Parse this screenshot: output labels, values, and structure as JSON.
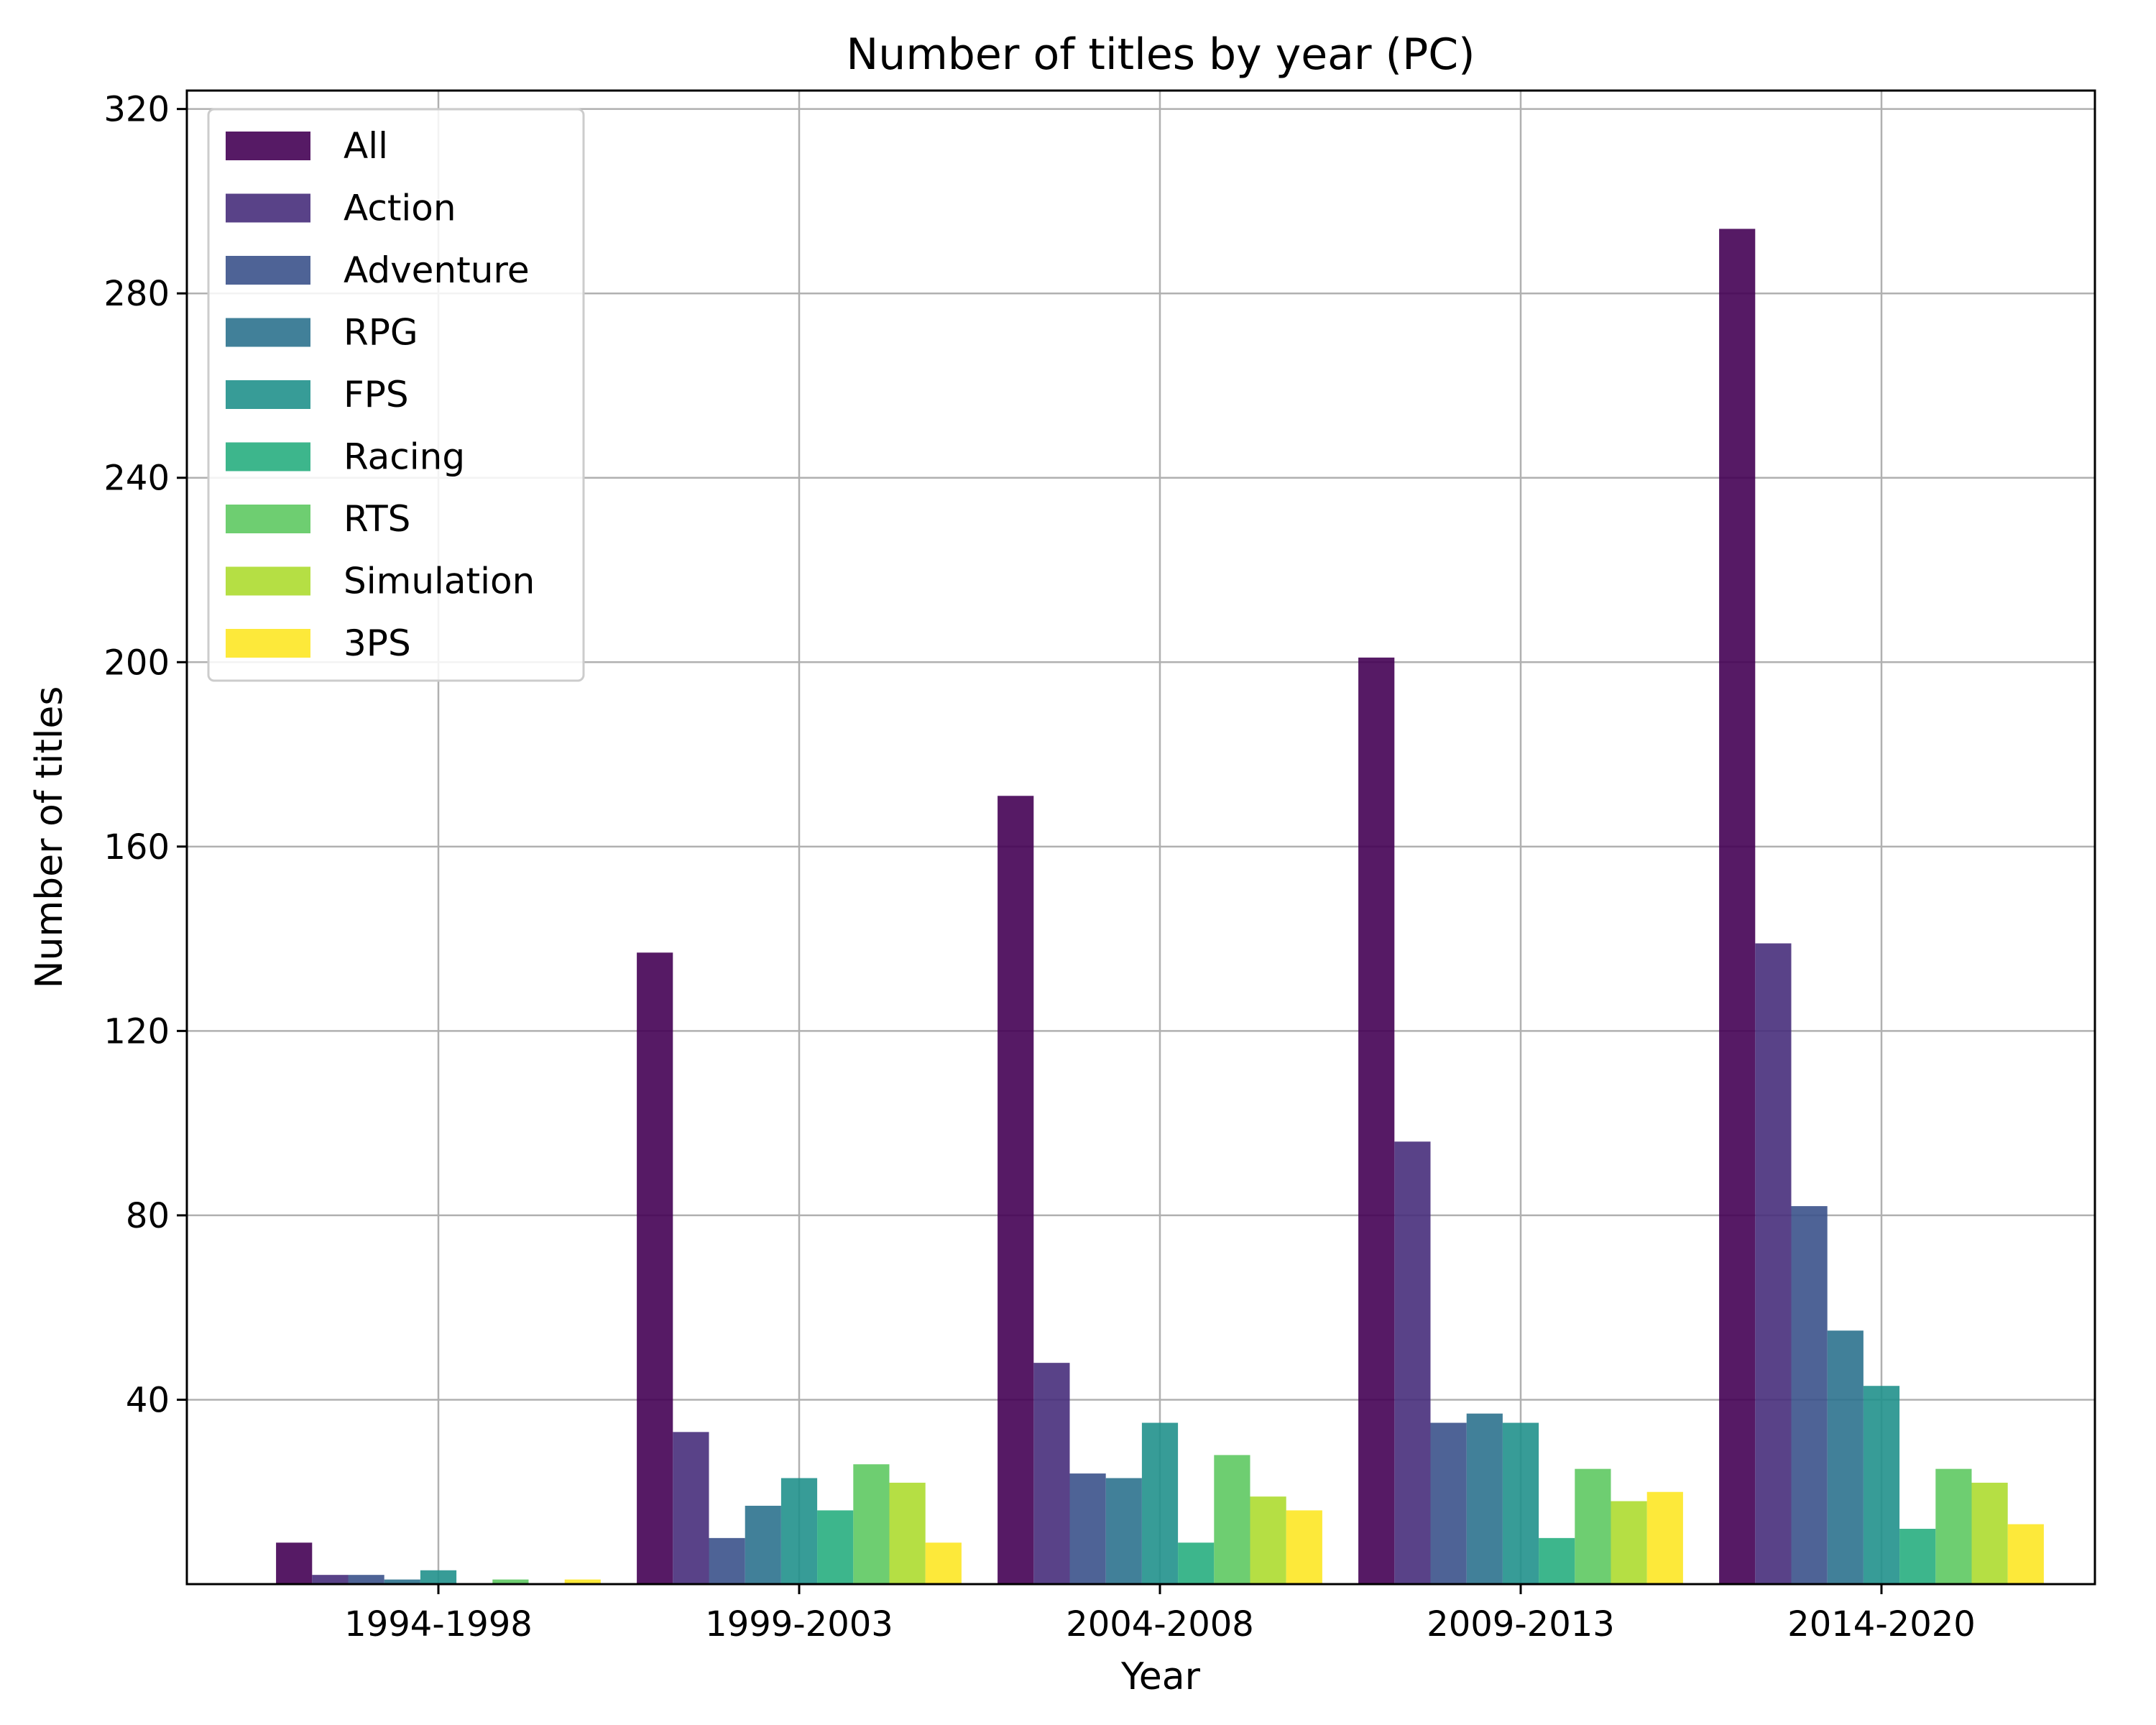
{
  "chart_data": {
    "type": "bar",
    "title": "Number of titles by year (PC)",
    "xlabel": "Year",
    "ylabel": "Number of titles",
    "categories": [
      "1994-1998",
      "1999-2003",
      "2004-2008",
      "2009-2013",
      "2014-2020"
    ],
    "yticks": [
      "40",
      "80",
      "120",
      "160",
      "200",
      "240",
      "280",
      "320"
    ],
    "ylim": [
      0,
      324
    ],
    "grid": true,
    "legend_position": "upper-left",
    "series": [
      {
        "name": "All",
        "color": "#440154",
        "values": [
          9,
          137,
          171,
          201,
          294
        ]
      },
      {
        "name": "Action",
        "color": "#472d7b",
        "values": [
          2,
          33,
          48,
          96,
          139
        ]
      },
      {
        "name": "Adventure",
        "color": "#3b528b",
        "values": [
          2,
          10,
          24,
          35,
          82
        ]
      },
      {
        "name": "RPG",
        "color": "#2c728e",
        "values": [
          1,
          17,
          23,
          37,
          55
        ]
      },
      {
        "name": "FPS",
        "color": "#21918c",
        "values": [
          3,
          23,
          35,
          35,
          43
        ]
      },
      {
        "name": "Racing",
        "color": "#28ae80",
        "values": [
          0,
          16,
          9,
          10,
          12
        ]
      },
      {
        "name": "RTS",
        "color": "#5ec962",
        "values": [
          1,
          26,
          28,
          25,
          25
        ]
      },
      {
        "name": "Simulation",
        "color": "#addc30",
        "values": [
          0,
          22,
          19,
          18,
          22
        ]
      },
      {
        "name": "3PS",
        "color": "#fde725",
        "values": [
          1,
          9,
          16,
          20,
          13
        ]
      }
    ]
  }
}
